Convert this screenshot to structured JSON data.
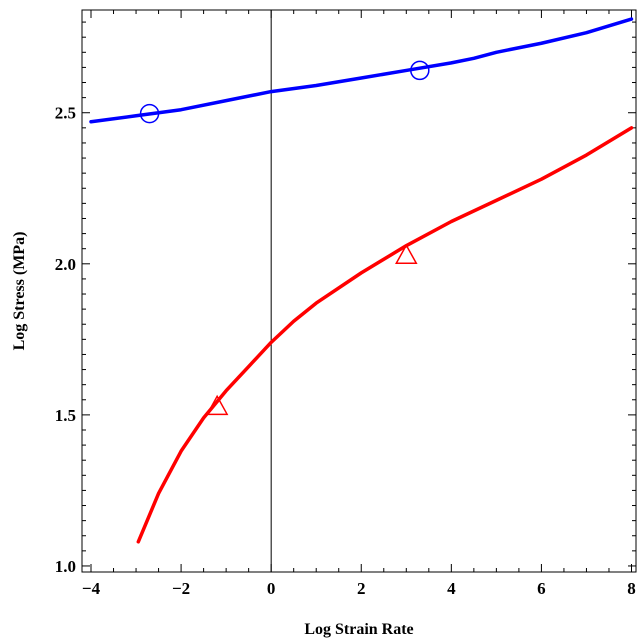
{
  "chart_data": {
    "type": "line",
    "xlabel": "Log Strain Rate",
    "ylabel": "Log Stress (MPa)",
    "xlim": [
      -4.2,
      8.1
    ],
    "ylim": [
      0.98,
      2.84
    ],
    "x_ticks": [
      -4,
      -2,
      0,
      2,
      4,
      6,
      8
    ],
    "x_tick_labels": [
      "−4",
      "−2",
      "0",
      "2",
      "4",
      "6",
      "8"
    ],
    "y_ticks": [
      1.0,
      1.5,
      2.0,
      2.5
    ],
    "y_tick_labels": [
      "1.0",
      "1.5",
      "2.0",
      "2.5"
    ],
    "grid": false,
    "legend": "none",
    "series": [
      {
        "color": "#0000ff",
        "marker": "circle",
        "x": [
          -4.0,
          -3.0,
          -2.0,
          -1.0,
          0.0,
          1.0,
          2.0,
          3.0,
          4.0,
          4.5,
          5.0,
          6.0,
          7.0,
          8.0
        ],
        "y": [
          2.47,
          2.49,
          2.51,
          2.54,
          2.57,
          2.59,
          2.615,
          2.64,
          2.665,
          2.68,
          2.7,
          2.73,
          2.765,
          2.81
        ],
        "markers": [
          {
            "x": -2.7,
            "y": 2.497
          },
          {
            "x": 3.3,
            "y": 2.64
          }
        ]
      },
      {
        "color": "#ff0000",
        "marker": "triangle",
        "x": [
          -2.95,
          -2.5,
          -2.0,
          -1.5,
          -1.0,
          -0.5,
          0.0,
          0.5,
          1.0,
          2.0,
          3.0,
          4.0,
          5.0,
          6.0,
          7.0,
          8.0
        ],
        "y": [
          1.08,
          1.24,
          1.38,
          1.49,
          1.58,
          1.66,
          1.74,
          1.81,
          1.87,
          1.97,
          2.06,
          2.14,
          2.21,
          2.28,
          2.36,
          2.45
        ],
        "markers": [
          {
            "x": -1.2,
            "y": 1.53
          },
          {
            "x": 3.0,
            "y": 2.03
          }
        ]
      }
    ]
  }
}
